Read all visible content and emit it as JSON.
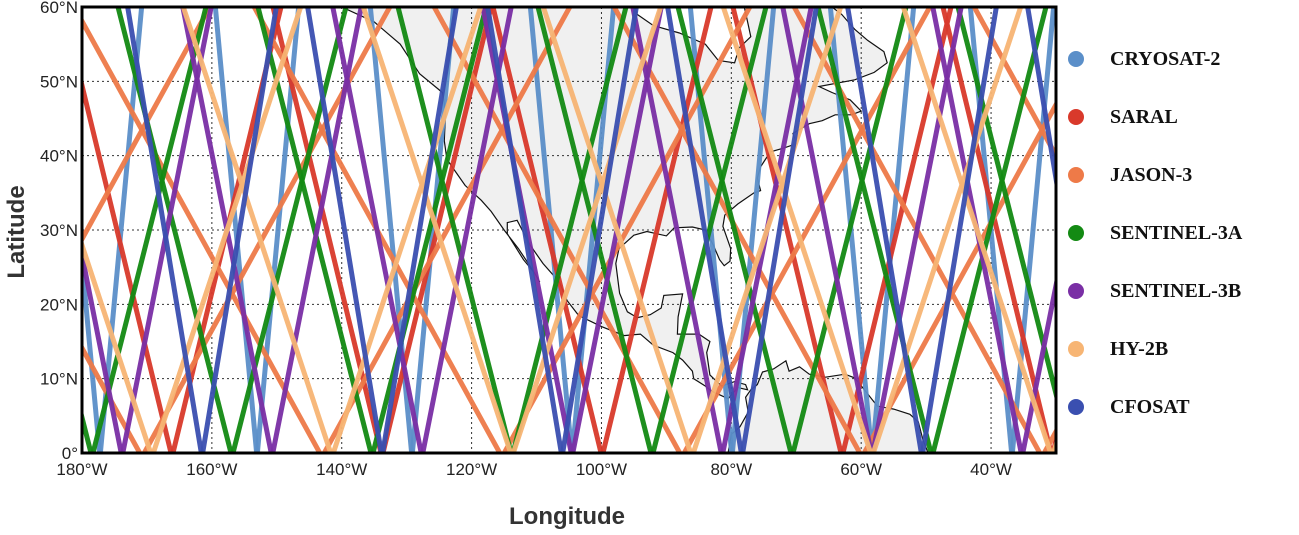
{
  "map": {
    "xlabel": "Longitude",
    "ylabel": "Latitude",
    "xlim": [
      -180,
      -30
    ],
    "ylim": [
      0,
      60
    ],
    "grid": true,
    "land_color": "#f0f0f0",
    "coast_color": "#111111",
    "x_ticks": [
      {
        "value": -180,
        "label": "180°W"
      },
      {
        "value": -160,
        "label": "160°W"
      },
      {
        "value": -140,
        "label": "140°W"
      },
      {
        "value": -120,
        "label": "120°W"
      },
      {
        "value": -100,
        "label": "100°W"
      },
      {
        "value": -80,
        "label": "80°W"
      },
      {
        "value": -60,
        "label": "60°W"
      },
      {
        "value": -40,
        "label": "40°W"
      }
    ],
    "y_ticks": [
      {
        "value": 0,
        "label": "0°"
      },
      {
        "value": 10,
        "label": "10°N"
      },
      {
        "value": 20,
        "label": "20°N"
      },
      {
        "value": 30,
        "label": "30°N"
      },
      {
        "value": 40,
        "label": "40°N"
      },
      {
        "value": 50,
        "label": "50°N"
      },
      {
        "value": 60,
        "label": "60°N"
      }
    ]
  },
  "legend": {
    "placement": "right",
    "items": [
      {
        "name": "CRYOSAT-2",
        "color": "#5b8fc9"
      },
      {
        "name": "SARAL",
        "color": "#d9392b"
      },
      {
        "name": "JASON-3",
        "color": "#ee7a48"
      },
      {
        "name": "SENTINEL-3A",
        "color": "#138a13"
      },
      {
        "name": "SENTINEL-3B",
        "color": "#7a2fa5"
      },
      {
        "name": "HY-2B",
        "color": "#f7b574"
      },
      {
        "name": "CFOSAT",
        "color": "#3a4fb0"
      }
    ]
  }
}
